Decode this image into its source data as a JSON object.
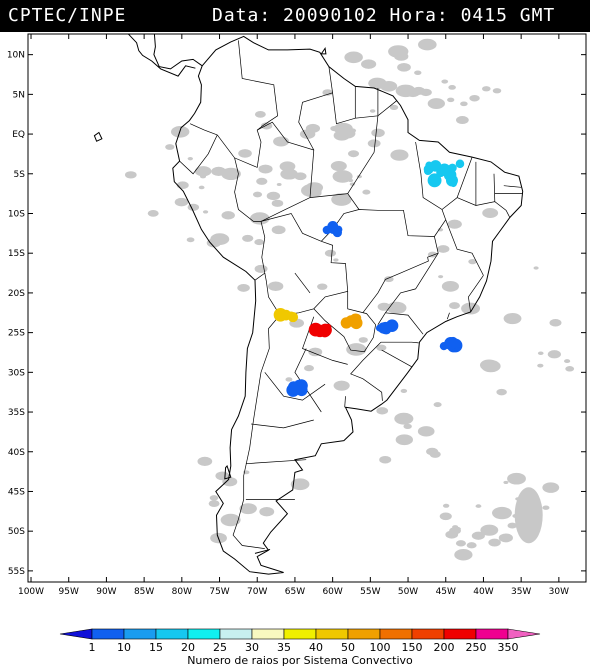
{
  "header": {
    "source": "CPTEC/INPE",
    "datetime": "Data: 20090102 Hora: 0415 GMT"
  },
  "map": {
    "lat_labels": [
      "10N",
      "5N",
      "EQ",
      "5S",
      "10S",
      "15S",
      "20S",
      "25S",
      "30S",
      "35S",
      "40S",
      "45S",
      "50S",
      "55S"
    ],
    "lon_labels": [
      "100W",
      "95W",
      "90W",
      "85W",
      "80W",
      "75W",
      "70W",
      "65W",
      "60W",
      "55W",
      "50W",
      "45W",
      "40W",
      "35W",
      "30W"
    ]
  },
  "legend": {
    "title": "Numero de raios por Sistema Convectivo",
    "values": [
      "1",
      "10",
      "15",
      "20",
      "25",
      "30",
      "35",
      "40",
      "50",
      "100",
      "150",
      "200",
      "250",
      "350"
    ],
    "colors": [
      "#1010d8",
      "#1060f0",
      "#1a9cf0",
      "#16c8f0",
      "#10f0f0",
      "#c8f0f0",
      "#f8f8c0",
      "#f0f000",
      "#f0c800",
      "#f0a000",
      "#f07000",
      "#f04000",
      "#f00000",
      "#f00090",
      "#f060c0"
    ]
  },
  "storm_cells": [
    {
      "name": "storm-cell-brazil-northeast",
      "lon": -45.5,
      "lat": -5.0,
      "color": "#16c8f0"
    },
    {
      "name": "storm-cell-central-brazil",
      "lon": -60.0,
      "lat": -12.0,
      "color": "#1060f0"
    },
    {
      "name": "storm-cell-paraguay-red",
      "lon": -61.5,
      "lat": -24.5,
      "color": "#f00000"
    },
    {
      "name": "storm-cell-paraguay-orange",
      "lon": -57.5,
      "lat": -23.5,
      "color": "#f0a000"
    },
    {
      "name": "storm-cell-chaco",
      "lon": -66.0,
      "lat": -23.0,
      "color": "#f0c800"
    },
    {
      "name": "storm-cell-parana",
      "lon": -53.0,
      "lat": -24.5,
      "color": "#1060f0"
    },
    {
      "name": "storm-cell-brazil-coast",
      "lon": -44.5,
      "lat": -26.5,
      "color": "#1060f0"
    },
    {
      "name": "storm-cell-argentina",
      "lon": -64.5,
      "lat": -32.0,
      "color": "#1060f0"
    }
  ]
}
